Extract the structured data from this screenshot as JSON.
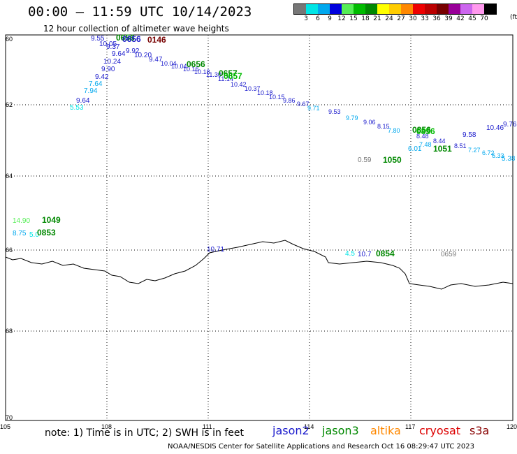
{
  "header": {
    "title": "00:00 – 11:59 UTC 10/14/2023",
    "subtitle": "12 hour collection of altimeter wave heights"
  },
  "legend": {
    "unit": "(ft)",
    "colors": [
      "#777777",
      "#00e5e5",
      "#00a8ee",
      "#0000dd",
      "#55ee55",
      "#00bb00",
      "#008800",
      "#ffff00",
      "#ffcc00",
      "#ff8800",
      "#ee0000",
      "#bb0000",
      "#770000",
      "#990099",
      "#cc66ee",
      "#ff99ee",
      "#000000"
    ],
    "labels": [
      "3",
      "6",
      "9",
      "12",
      "15",
      "18",
      "21",
      "24",
      "27",
      "30",
      "33",
      "36",
      "39",
      "42",
      "45",
      "70"
    ]
  },
  "axes": {
    "x_labels": [
      "105",
      "108",
      "111",
      "114",
      "117",
      "120"
    ],
    "y_labels": [
      "60",
      "62",
      "64",
      "66",
      "68",
      "70"
    ]
  },
  "observations": {
    "wave_heights": [
      "9.55",
      "10.05",
      "9.37",
      "9.64",
      "9.92",
      "10.20",
      "9.47",
      "10.24",
      "9.90",
      "9.42",
      "7.64",
      "7.94",
      "9.64",
      "5.53",
      "10.71",
      "0.59",
      "14.90",
      "8.75",
      "5.0",
      "4.5",
      "10.7",
      "6.01",
      "9.58",
      "10.46",
      "9.76",
      "5.38"
    ],
    "times": [
      "0656",
      "0656",
      "0146",
      "0656",
      "0657",
      "0657",
      "0856",
      "0856",
      "1051",
      "1050",
      "1049",
      "0853",
      "0854",
      "0659"
    ]
  },
  "footer": {
    "note": "note:  1) Time is in UTC;  2) SWH is in feet",
    "satellites": [
      {
        "name": "jason2",
        "color": "#1a1acc"
      },
      {
        "name": "jason3",
        "color": "#008800"
      },
      {
        "name": "altika",
        "color": "#ff8800"
      },
      {
        "name": "cryosat",
        "color": "#dd0000"
      },
      {
        "name": "s3a",
        "color": "#880000"
      }
    ],
    "credit": "NOAA/NESDIS Center for Satellite Applications and Research     Oct 16 08:29:47 UTC 2023"
  }
}
